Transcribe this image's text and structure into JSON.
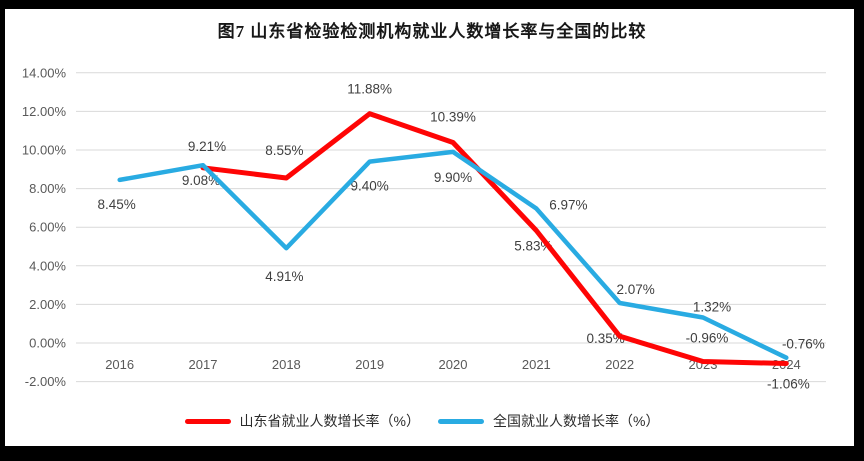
{
  "title": "图7  山东省检验检测机构就业人数增长率与全国的比较",
  "legend": [
    {
      "label": "山东省就业人数增长率（%）",
      "color": "#fe0505"
    },
    {
      "label": "全国就业人数增长率（%）",
      "color": "#29abe2"
    }
  ],
  "colors": {
    "gridline": "#d9d9d9",
    "axis_text": "#595959",
    "data_label_text": "#3f3f3f",
    "frame": "#000000",
    "background": "#ffffff"
  },
  "chart_data": {
    "type": "line",
    "title": "图7  山东省检验检测机构就业人数增长率与全国的比较",
    "categories": [
      "2016",
      "2017",
      "2018",
      "2019",
      "2020",
      "2021",
      "2022",
      "2023",
      "2024"
    ],
    "xlabel": "",
    "ylabel": "",
    "y_axis": {
      "min": -2,
      "max": 14,
      "step": 2,
      "tick_labels": [
        "14.00%",
        "12.00%",
        "10.00%",
        "8.00%",
        "6.00%",
        "4.00%",
        "2.00%",
        "0.00%",
        "-2.00%"
      ],
      "grid": true
    },
    "legend_position": "bottom",
    "series": [
      {
        "name": "山东省就业人数增长率（%）",
        "color": "#fe0505",
        "stroke_width": 5,
        "values": [
          null,
          9.08,
          8.55,
          11.88,
          10.39,
          5.83,
          0.35,
          -0.96,
          -1.06
        ],
        "labels": [
          "",
          "9.08%",
          "8.55%",
          "11.88%",
          "10.39%",
          "5.83%",
          "0.35%",
          "-0.96%",
          "-1.06%"
        ],
        "label_offsets": [
          [
            0,
            0
          ],
          [
            -2,
            17
          ],
          [
            -2,
            -23
          ],
          [
            0,
            -20
          ],
          [
            0,
            -21
          ],
          [
            -3,
            20
          ],
          [
            -14,
            7
          ],
          [
            4,
            -19
          ],
          [
            2,
            25
          ]
        ]
      },
      {
        "name": "全国就业人数增长率（%）",
        "color": "#29abe2",
        "stroke_width": 4.5,
        "values": [
          8.45,
          9.21,
          4.91,
          9.4,
          9.9,
          6.97,
          2.07,
          1.32,
          -0.76
        ],
        "labels": [
          "8.45%",
          "9.21%",
          "4.91%",
          "9.40%",
          "9.90%",
          "6.97%",
          "2.07%",
          "1.32%",
          "-0.76%"
        ],
        "label_offsets": [
          [
            -3,
            29
          ],
          [
            4,
            -14
          ],
          [
            -2,
            33
          ],
          [
            0,
            29
          ],
          [
            0,
            30
          ],
          [
            32,
            1
          ],
          [
            16,
            -9
          ],
          [
            9,
            -6
          ],
          [
            17,
            -9
          ]
        ]
      }
    ]
  }
}
